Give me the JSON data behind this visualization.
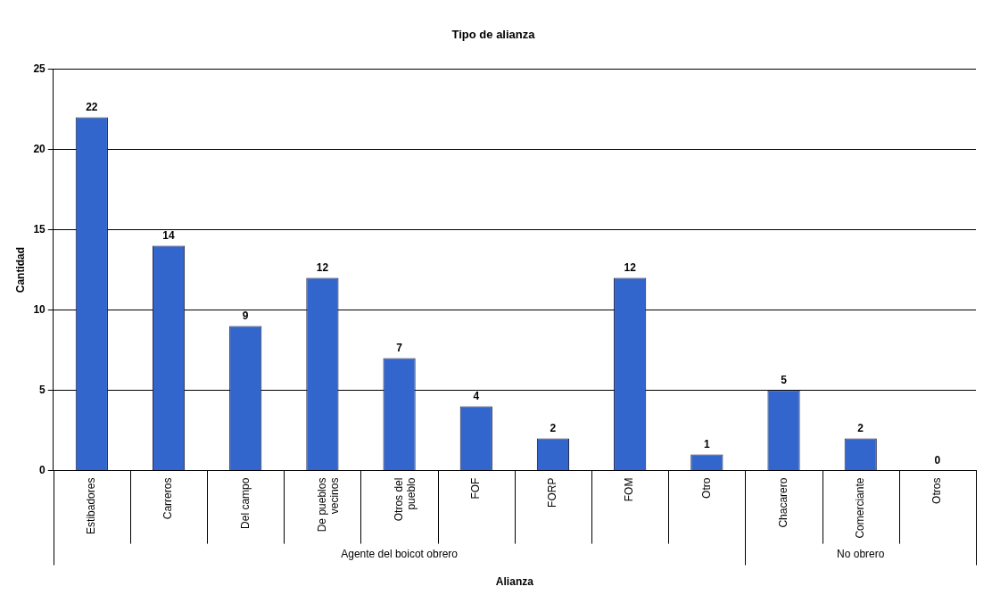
{
  "chart_data": {
    "type": "bar",
    "title": "Tipo de alianza",
    "xlabel": "Alianza",
    "ylabel": "Cantidad",
    "categories": [
      "Estibadores",
      "Carreros",
      "Del campo",
      "De pueblos vecinos",
      "Otros del pueblo",
      "FOF",
      "FORP",
      "FOM",
      "Otro",
      "Chacarero",
      "Comerciante",
      "Otros"
    ],
    "values": [
      22,
      14,
      9,
      12,
      7,
      4,
      2,
      12,
      1,
      5,
      2,
      0
    ],
    "color": "#3366cc",
    "ylim": [
      0,
      25
    ],
    "yticks": [
      0,
      5,
      10,
      15,
      20,
      25
    ],
    "grid": "y",
    "legend": false,
    "data_labels": true,
    "annotations": [
      "Agente del boicot obrero",
      "No obrero"
    ]
  }
}
